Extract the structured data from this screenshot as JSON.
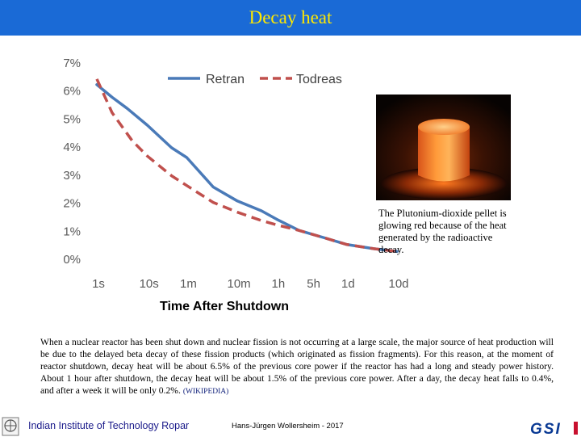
{
  "slide_title": "Decay heat",
  "chart_data": {
    "type": "line",
    "x_axis_label": "Time After Shutdown",
    "x_tick_labels": [
      "1s",
      "10s",
      "1m",
      "10m",
      "1h",
      "5h",
      "1d",
      "10d"
    ],
    "x_tick_seconds": [
      1,
      10,
      60,
      600,
      3600,
      18000,
      86400,
      864000
    ],
    "y_tick_labels": [
      "0%",
      "1%",
      "2%",
      "3%",
      "4%",
      "5%",
      "6%",
      "7%"
    ],
    "ylim": [
      0,
      7
    ],
    "series": [
      {
        "name": "Retran",
        "color": "#4a7ab8",
        "dash": "solid",
        "points": [
          {
            "t": 1,
            "v": 6.2
          },
          {
            "t": 2,
            "v": 5.75
          },
          {
            "t": 4,
            "v": 5.35
          },
          {
            "t": 10,
            "v": 4.75
          },
          {
            "t": 30,
            "v": 3.95
          },
          {
            "t": 60,
            "v": 3.6
          },
          {
            "t": 200,
            "v": 2.55
          },
          {
            "t": 600,
            "v": 2.05
          },
          {
            "t": 1800,
            "v": 1.7
          },
          {
            "t": 3600,
            "v": 1.4
          },
          {
            "t": 10000,
            "v": 1.0
          },
          {
            "t": 30000,
            "v": 0.75
          },
          {
            "t": 86400,
            "v": 0.5
          },
          {
            "t": 300000,
            "v": 0.35
          },
          {
            "t": 864000,
            "v": 0.25
          }
        ]
      },
      {
        "name": "Todreas",
        "color": "#c0504d",
        "dash": "dashed",
        "points": [
          {
            "t": 1,
            "v": 6.4
          },
          {
            "t": 2,
            "v": 5.2
          },
          {
            "t": 5,
            "v": 4.2
          },
          {
            "t": 10,
            "v": 3.65
          },
          {
            "t": 30,
            "v": 2.95
          },
          {
            "t": 60,
            "v": 2.6
          },
          {
            "t": 200,
            "v": 2.0
          },
          {
            "t": 600,
            "v": 1.65
          },
          {
            "t": 1800,
            "v": 1.35
          },
          {
            "t": 3600,
            "v": 1.2
          },
          {
            "t": 10000,
            "v": 1.0
          },
          {
            "t": 30000,
            "v": 0.75
          },
          {
            "t": 86400,
            "v": 0.5
          },
          {
            "t": 300000,
            "v": 0.35
          },
          {
            "t": 864000,
            "v": 0.25
          }
        ]
      }
    ],
    "legend_position": "top-center",
    "grid": false
  },
  "photo_caption": "The Plutonium-dioxide pellet is glowing red because of the heat generated by the radioactive decay.",
  "body_text": "When a nuclear reactor has been shut down and nuclear fission is not occurring at a large scale, the major source of heat production will be due to the delayed beta decay of these fission products (which originated as fission fragments). For this reason, at the moment of reactor shutdown, decay heat will be about 6.5% of the previous core power if the reactor has had a long and steady power history. About 1 hour after shutdown, the decay heat will be about 1.5% of the previous core power. After a day, the decay heat falls to 0.4%, and after a week it will be only 0.2%.",
  "source_label": "(WIKIPEDIA)",
  "footer": {
    "institute": "Indian Institute of Technology Ropar",
    "author": "Hans-Jürgen Wollersheim - 2017",
    "logo_text": "GSI"
  },
  "colors": {
    "title_bar": "#1a6ad6",
    "title_text": "#ffe800",
    "axis_text": "#595959",
    "institute_text": "#1a1a8a",
    "gsi_blue": "#0a3a94"
  }
}
